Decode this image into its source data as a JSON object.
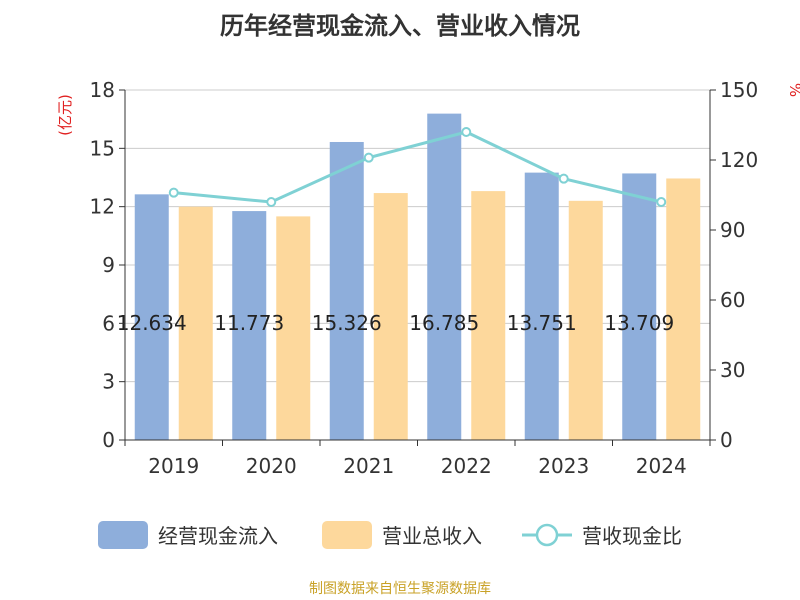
{
  "title": "历年经营现金流入、营业收入情况",
  "source": "制图数据来自恒生聚源数据库",
  "chart_data": {
    "type": "bar",
    "categories": [
      "2019",
      "2020",
      "2021",
      "2022",
      "2023",
      "2024"
    ],
    "series": [
      {
        "name": "经营现金流入",
        "type": "bar",
        "axis": "left",
        "color": "#8eaedb",
        "values": [
          12.634,
          11.773,
          15.326,
          16.785,
          13.751,
          13.709
        ],
        "labels": [
          "12.634",
          "11.773",
          "15.326",
          "16.785",
          "13.751",
          "13.709"
        ]
      },
      {
        "name": "营业总收入",
        "type": "bar",
        "axis": "left",
        "color": "#fdd89c",
        "values": [
          12.0,
          11.5,
          12.7,
          12.8,
          12.3,
          13.45
        ]
      },
      {
        "name": "营收现金比",
        "type": "line",
        "axis": "right",
        "color": "#7fd1d4",
        "values": [
          106,
          102,
          121,
          132,
          112,
          102
        ]
      }
    ],
    "y_left": {
      "unit": "(亿元)",
      "min": 0,
      "max": 18,
      "ticks": [
        "0",
        "3",
        "6",
        "9",
        "12",
        "15",
        "18"
      ]
    },
    "y_right": {
      "unit": "%",
      "min": 0,
      "max": 150,
      "ticks": [
        "0",
        "30",
        "60",
        "90",
        "120",
        "150"
      ]
    },
    "grid": true,
    "legend": "bottom"
  }
}
